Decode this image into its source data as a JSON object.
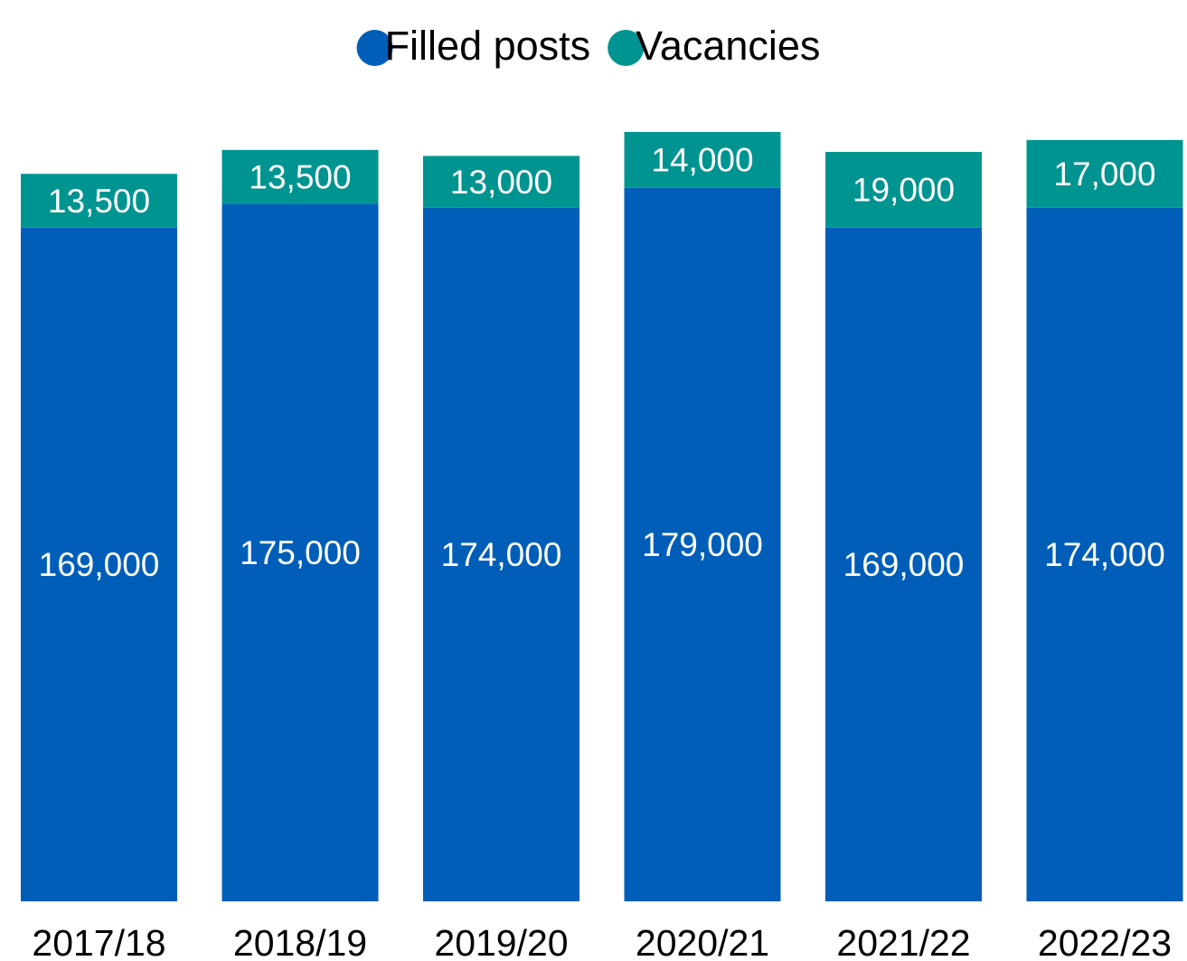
{
  "chart_data": {
    "type": "stacked_bar",
    "categories": [
      "2017/18",
      "2018/19",
      "2019/20",
      "2020/21",
      "2021/22",
      "2022/23"
    ],
    "series": [
      {
        "name": "Filled posts",
        "color": "#005eb8",
        "values": [
          169000,
          175000,
          174000,
          179000,
          169000,
          174000
        ],
        "value_labels": [
          "169,000",
          "175,000",
          "174,000",
          "179,000",
          "169,000",
          "174,000"
        ]
      },
      {
        "name": "Vacancies",
        "color": "#009490",
        "values": [
          13500,
          13500,
          13000,
          14000,
          19000,
          17000
        ],
        "value_labels": [
          "13,500",
          "13,500",
          "13,000",
          "14,000",
          "19,000",
          "17,000"
        ]
      }
    ],
    "legend": "top"
  }
}
